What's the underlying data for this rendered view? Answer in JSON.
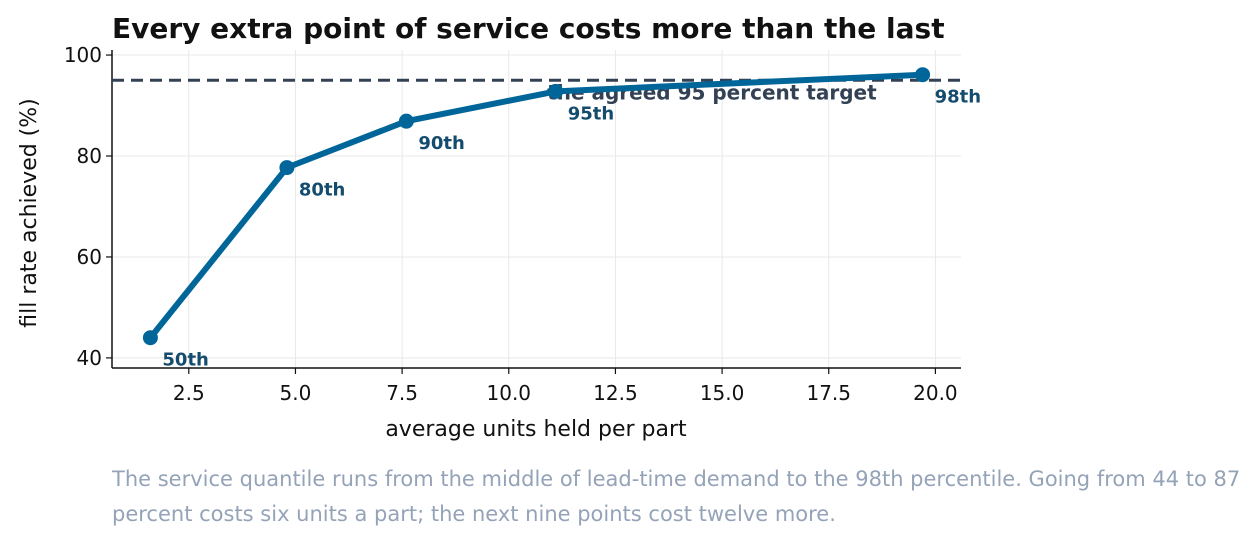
{
  "chart_data": {
    "type": "line",
    "title": "Every extra point of service costs more than the last",
    "xlabel": "average units held per part",
    "ylabel": "fill rate achieved (%)",
    "xlim": [
      0.7,
      20.6
    ],
    "ylim": [
      38,
      101
    ],
    "x_ticks": [
      "2.5",
      "5.0",
      "7.5",
      "10.0",
      "12.5",
      "15.0",
      "17.5",
      "20.0"
    ],
    "y_ticks": [
      "40",
      "60",
      "80",
      "100"
    ],
    "grid": true,
    "series": [
      {
        "x": [
          1.6,
          4.8,
          7.6,
          11.1,
          19.7
        ],
        "y": [
          44,
          77.7,
          86.9,
          92.8,
          96.1
        ],
        "labels": [
          "50th",
          "80th",
          "90th",
          "95th",
          "98th"
        ],
        "color": "#006699"
      }
    ],
    "reference_line": {
      "y": 95,
      "label": "the agreed 95 percent target",
      "color": "#334155",
      "style": "dashed"
    }
  },
  "caption": "The service quantile runs from the middle of lead-time demand to the 98th percentile. Going from 44 to 87 percent costs six units a part; the next nine points cost twelve more."
}
